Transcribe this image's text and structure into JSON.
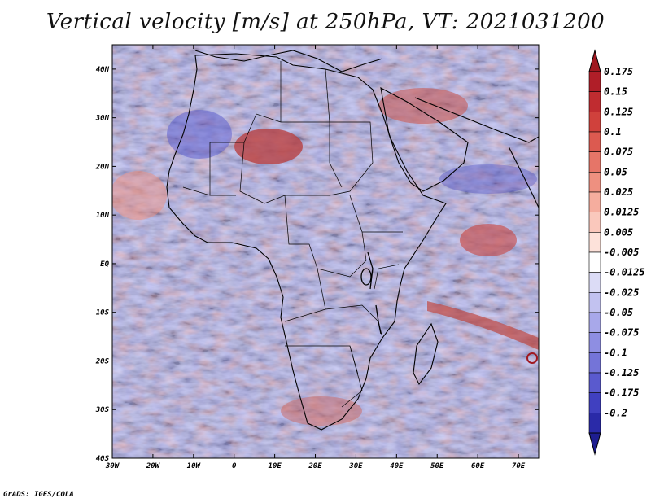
{
  "title": "Vertical velocity [m/s] at 250hPa, VT: 2021031200",
  "credit": "GrADS: IGES/COLA",
  "map": {
    "lon_range": [
      -30,
      75
    ],
    "lat_range": [
      -40,
      45
    ],
    "x_ticks": [
      {
        "value": -30,
        "label": "30W"
      },
      {
        "value": -20,
        "label": "20W"
      },
      {
        "value": -10,
        "label": "10W"
      },
      {
        "value": 0,
        "label": "0"
      },
      {
        "value": 10,
        "label": "10E"
      },
      {
        "value": 20,
        "label": "20E"
      },
      {
        "value": 30,
        "label": "30E"
      },
      {
        "value": 40,
        "label": "40E"
      },
      {
        "value": 50,
        "label": "50E"
      },
      {
        "value": 60,
        "label": "60E"
      },
      {
        "value": 70,
        "label": "70E"
      }
    ],
    "y_ticks": [
      {
        "value": 40,
        "label": "40N"
      },
      {
        "value": 30,
        "label": "30N"
      },
      {
        "value": 20,
        "label": "20N"
      },
      {
        "value": 10,
        "label": "10N"
      },
      {
        "value": 0,
        "label": "EQ"
      },
      {
        "value": -10,
        "label": "10S"
      },
      {
        "value": -20,
        "label": "20S"
      },
      {
        "value": -30,
        "label": "30S"
      },
      {
        "value": -40,
        "label": "40S"
      }
    ]
  },
  "colorbar": {
    "levels": [
      {
        "label": "0.175",
        "color": "#b01e28"
      },
      {
        "label": "0.15",
        "color": "#c02c30"
      },
      {
        "label": "0.125",
        "color": "#d0413c"
      },
      {
        "label": "0.1",
        "color": "#dc5a50"
      },
      {
        "label": "0.075",
        "color": "#e67568"
      },
      {
        "label": "0.05",
        "color": "#ee9080"
      },
      {
        "label": "0.025",
        "color": "#f5ad9e"
      },
      {
        "label": "0.0125",
        "color": "#fac8bc"
      },
      {
        "label": "0.005",
        "color": "#fde2da"
      },
      {
        "label": "-0.005",
        "color": "#ffffff"
      },
      {
        "label": "-0.0125",
        "color": "#dcdcf6"
      },
      {
        "label": "-0.025",
        "color": "#c2c2f0"
      },
      {
        "label": "-0.05",
        "color": "#a8a8ea"
      },
      {
        "label": "-0.075",
        "color": "#8e8ee2"
      },
      {
        "label": "-0.1",
        "color": "#7474d8"
      },
      {
        "label": "-0.125",
        "color": "#5a5ace"
      },
      {
        "label": "-0.175",
        "color": "#4040c0"
      },
      {
        "label": "-0.2",
        "color": "#2a2aa8"
      }
    ],
    "top_color": "#a01820",
    "bottom_color": "#1e1e90"
  }
}
